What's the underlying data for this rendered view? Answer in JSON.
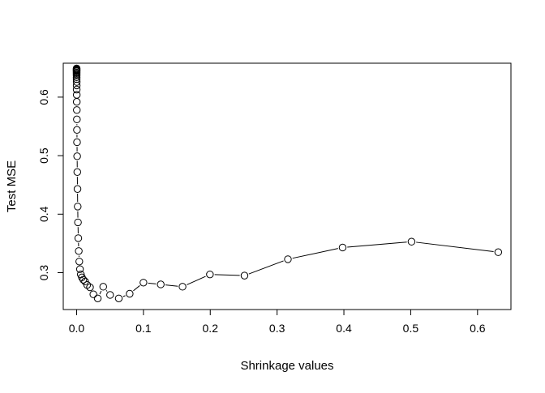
{
  "chart_data": {
    "type": "line",
    "title": "",
    "xlabel": "Shrinkage values",
    "ylabel": "Test MSE",
    "xlim": [
      -0.02,
      0.65
    ],
    "ylim": [
      0.237,
      0.658
    ],
    "xticks": [
      0.0,
      0.1,
      0.2,
      0.3,
      0.4,
      0.5,
      0.6
    ],
    "xtick_labels": [
      "0.0",
      "0.1",
      "0.2",
      "0.3",
      "0.4",
      "0.5",
      "0.6"
    ],
    "yticks": [
      0.3,
      0.4,
      0.5,
      0.6
    ],
    "ytick_labels": [
      "0.3",
      "0.4",
      "0.5",
      "0.6"
    ],
    "grid": false,
    "series": [
      {
        "marker": "open-circle",
        "line": true,
        "color": "#000000",
        "points": [
          [
            0.0,
            0.649
          ],
          [
            0.0,
            0.648
          ],
          [
            0.0,
            0.647
          ],
          [
            0.0,
            0.646
          ],
          [
            0.0,
            0.645
          ],
          [
            0.0,
            0.644
          ],
          [
            0.0,
            0.642
          ],
          [
            0.0,
            0.641
          ],
          [
            0.0,
            0.639
          ],
          [
            0.0,
            0.637
          ],
          [
            0.0,
            0.634
          ],
          [
            0.0,
            0.631
          ],
          [
            0.0001,
            0.626
          ],
          [
            0.0001,
            0.62
          ],
          [
            0.0001,
            0.613
          ],
          [
            0.0002,
            0.604
          ],
          [
            0.0002,
            0.592
          ],
          [
            0.0003,
            0.578
          ],
          [
            0.0004,
            0.562
          ],
          [
            0.0005,
            0.544
          ],
          [
            0.0006,
            0.523
          ],
          [
            0.0008,
            0.499
          ],
          [
            0.001,
            0.472
          ],
          [
            0.0013,
            0.443
          ],
          [
            0.0016,
            0.413
          ],
          [
            0.002,
            0.386
          ],
          [
            0.0025,
            0.359
          ],
          [
            0.0032,
            0.337
          ],
          [
            0.004,
            0.319
          ],
          [
            0.005,
            0.306
          ],
          [
            0.0063,
            0.297
          ],
          [
            0.0079,
            0.292
          ],
          [
            0.01,
            0.288
          ],
          [
            0.0126,
            0.285
          ],
          [
            0.0158,
            0.279
          ],
          [
            0.02,
            0.275
          ],
          [
            0.0251,
            0.263
          ],
          [
            0.0316,
            0.256
          ],
          [
            0.0398,
            0.276
          ],
          [
            0.0501,
            0.262
          ],
          [
            0.0631,
            0.256
          ],
          [
            0.0794,
            0.264
          ],
          [
            0.1,
            0.283
          ],
          [
            0.1259,
            0.28
          ],
          [
            0.1585,
            0.276
          ],
          [
            0.1995,
            0.297
          ],
          [
            0.2512,
            0.295
          ],
          [
            0.3162,
            0.323
          ],
          [
            0.3981,
            0.343
          ],
          [
            0.5012,
            0.353
          ],
          [
            0.631,
            0.335
          ]
        ]
      }
    ]
  }
}
